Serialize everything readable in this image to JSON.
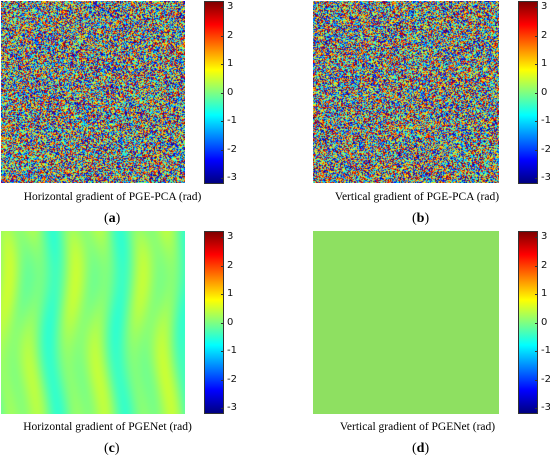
{
  "panels": [
    {
      "id": "a",
      "caption": "Horizontal gradient of PGE-PCA (rad)",
      "label_open": "(",
      "label_letter": "a",
      "label_close": ")",
      "pattern": "noise"
    },
    {
      "id": "b",
      "caption": "Vertical gradient of PGE-PCA (rad)",
      "label_open": "(",
      "label_letter": "b",
      "label_close": ")",
      "pattern": "noise"
    },
    {
      "id": "c",
      "caption": "Horizontal gradient of PGENet (rad)",
      "label_open": "(",
      "label_letter": "c",
      "label_close": ")",
      "pattern": "smooth-stripes"
    },
    {
      "id": "d",
      "caption": "Vertical gradient of PGENet (rad)",
      "label_open": "(",
      "label_letter": "d",
      "label_close": ")",
      "pattern": "flat"
    }
  ],
  "colorbar": {
    "colormap": "jet",
    "range": [
      -3,
      3
    ],
    "tick_labels": [
      "3",
      "2",
      "1",
      "0",
      "-1",
      "-2",
      "-3"
    ]
  },
  "colors": {
    "flat_green": "#8ee061",
    "stripe_cyan": "#74e0b0",
    "stripe_yellow": "#c8f060"
  }
}
